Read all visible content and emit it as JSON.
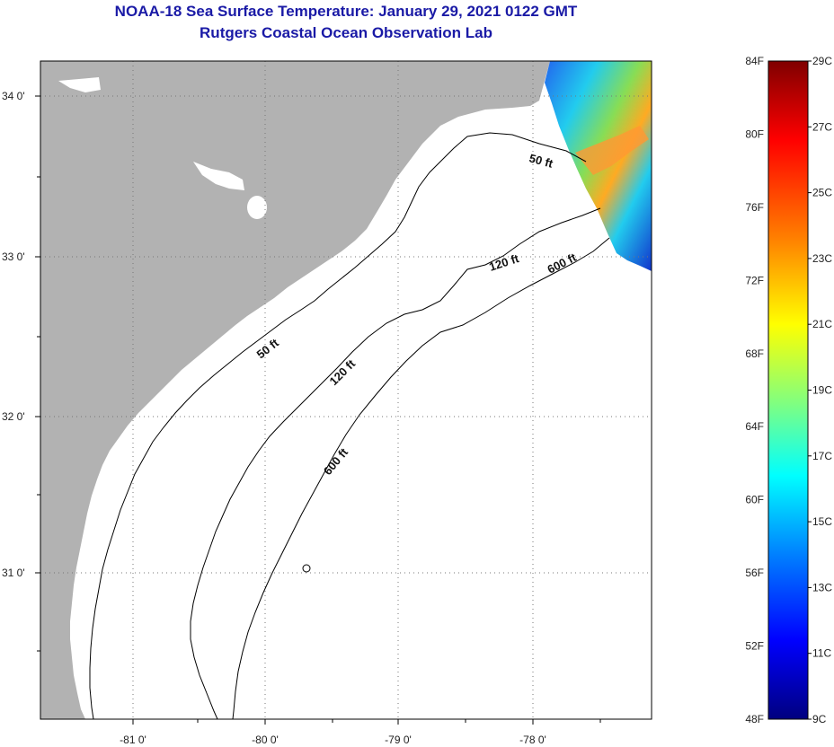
{
  "header": {
    "title": "NOAA-18 Sea Surface Temperature:  January 29, 2021 0122 GMT",
    "subtitle": "Rutgers Coastal Ocean Observation Lab"
  },
  "map": {
    "longitude_labels": [
      "-81 0'",
      "-80 0'",
      "-79 0'",
      "-78 0'"
    ],
    "latitude_labels": [
      "34 0'",
      "33 0'",
      "32 0'",
      "31 0'"
    ],
    "contour_labels": {
      "c50a": "50 ft",
      "c50b": "50 ft",
      "c120a": "120 ft",
      "c120b": "120 ft",
      "c600a": "600 ft",
      "c600b": "600 ft"
    },
    "colors": {
      "land": "#b2b2b2",
      "ocean": "#ffffff",
      "contour": "#000000"
    }
  },
  "colorbar": {
    "fahrenheit_labels": [
      "84F",
      "80F",
      "76F",
      "72F",
      "68F",
      "64F",
      "60F",
      "56F",
      "52F",
      "48F"
    ],
    "celsius_labels": [
      "29C",
      "27C",
      "25C",
      "23C",
      "21C",
      "19C",
      "17C",
      "15C",
      "13C",
      "11C",
      "9C"
    ],
    "gradient_colors": [
      "#7f0000",
      "#ff0000",
      "#ff8000",
      "#ffff00",
      "#80ff80",
      "#00ffff",
      "#0080ff",
      "#0000ff",
      "#00007f"
    ]
  }
}
